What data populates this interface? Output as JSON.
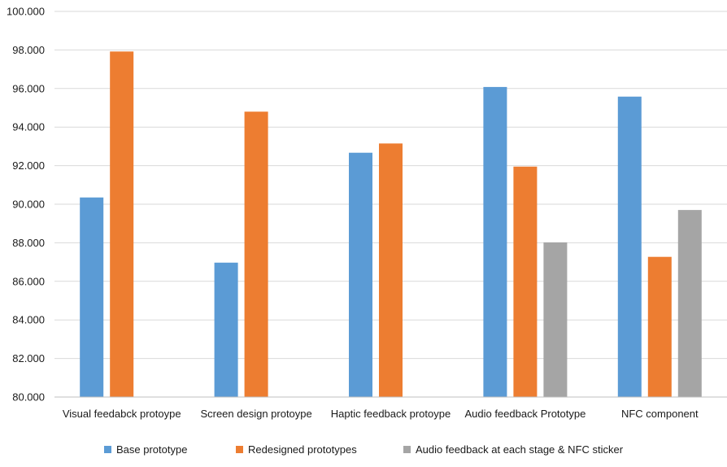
{
  "chart_data": {
    "type": "bar",
    "title": "",
    "xlabel": "",
    "ylabel": "",
    "ylim": [
      80,
      100
    ],
    "ytick_step": 2,
    "ytick_labels": [
      "80.000",
      "82.000",
      "84.000",
      "86.000",
      "88.000",
      "90.000",
      "92.000",
      "94.000",
      "96.000",
      "98.000",
      "100.000"
    ],
    "grid": true,
    "legend_position": "bottom",
    "categories": [
      "Visual feedabck protoype",
      "Screen design protoype",
      "Haptic feedback protoype",
      "Audio feedback Prototype",
      "NFC component"
    ],
    "series": [
      {
        "name": "Base prototype",
        "color": "#5b9bd5",
        "values": [
          90.35,
          86.97,
          92.67,
          96.08,
          95.58
        ]
      },
      {
        "name": "Redesigned prototypes",
        "color": "#ed7d31",
        "values": [
          97.92,
          94.8,
          93.15,
          91.95,
          87.27
        ]
      },
      {
        "name": "Audio feedback at each stage & NFC sticker",
        "color": "#a5a5a5",
        "values": [
          null,
          null,
          null,
          88.02,
          89.7
        ]
      }
    ]
  }
}
